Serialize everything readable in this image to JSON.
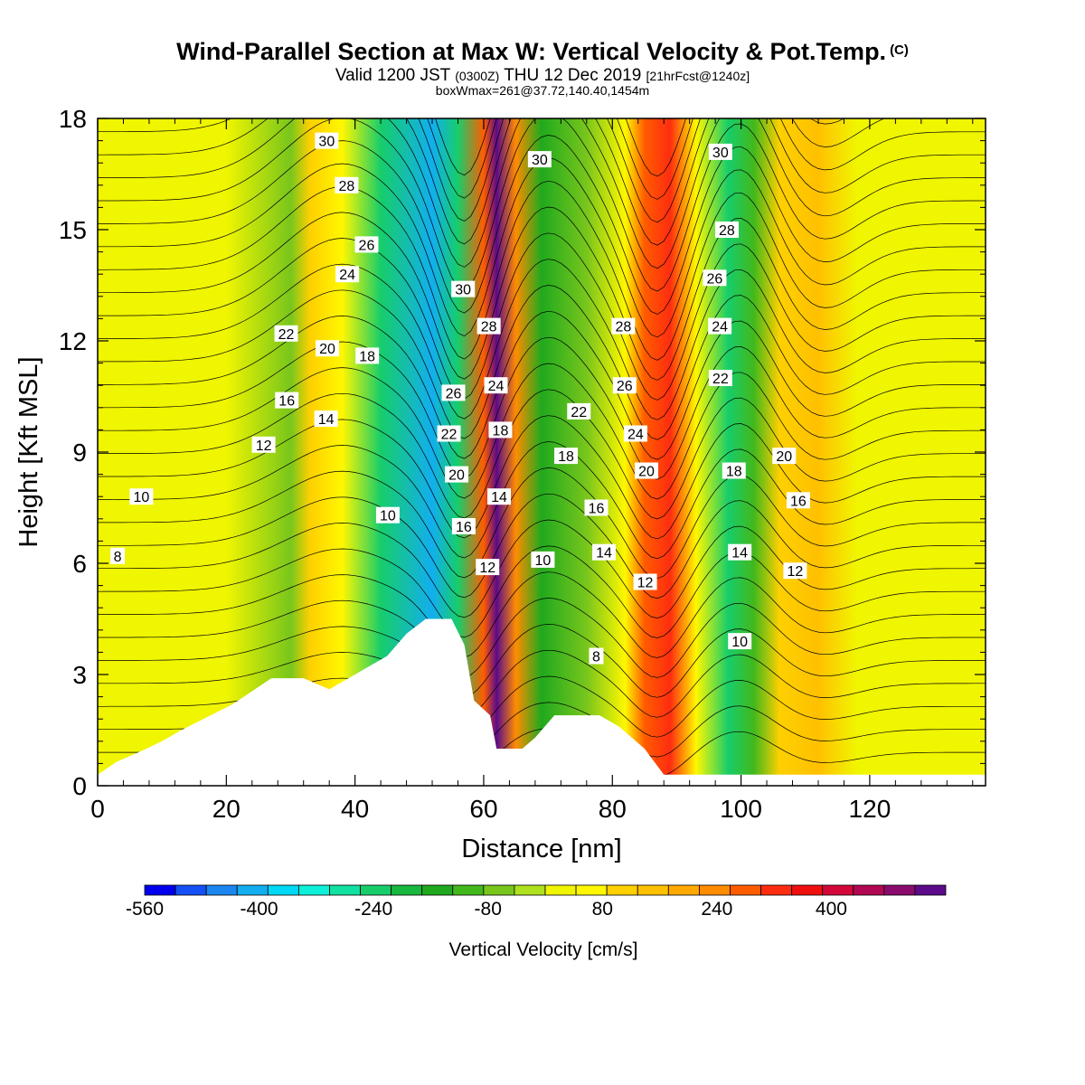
{
  "title": {
    "main": "Wind-Parallel Section at Max W: Vertical Velocity & Pot.Temp.",
    "copyright_mark": "(C)",
    "valid_prefix": "Valid 1200 JST",
    "utc": "(0300Z)",
    "valid_date": "THU 12 Dec 2019",
    "forecast": "[21hrFcst@1240z]",
    "box_info": "boxWmax=261@37.72,140.40,1454m"
  },
  "chart_data": {
    "type": "contour",
    "xlabel": "Distance [nm]",
    "ylabel": "Height [Kft MSL]",
    "xlim": [
      0,
      138
    ],
    "ylim": [
      0,
      18
    ],
    "x_ticks": [
      0,
      20,
      40,
      60,
      80,
      100,
      120
    ],
    "y_ticks": [
      0,
      3,
      6,
      9,
      12,
      15,
      18
    ],
    "colorbar": {
      "label": "Vertical Velocity [cm/s]",
      "tick_labels": [
        -560,
        -400,
        -240,
        -80,
        80,
        240,
        400
      ],
      "min": -560,
      "max": 560,
      "colors": [
        "#0000ee",
        "#1450f5",
        "#1b86f0",
        "#12aef0",
        "#00d8f5",
        "#0ef0d8",
        "#12e0a0",
        "#17cd6a",
        "#18b73e",
        "#20a91e",
        "#42b81c",
        "#78c61c",
        "#aee11e",
        "#f0f500",
        "#fff700",
        "#fed000",
        "#ffc000",
        "#ffa900",
        "#ff8c00",
        "#ff5c00",
        "#ff2d10",
        "#f00f0f",
        "#d4073a",
        "#b20752",
        "#8a0a6d",
        "#5c0a8a"
      ]
    },
    "wind_series": [
      {
        "x": 0,
        "w": 40
      },
      {
        "x": 20,
        "w": 40
      },
      {
        "x": 30,
        "w": -60
      },
      {
        "x": 33,
        "w": 100
      },
      {
        "x": 38,
        "w": 70
      },
      {
        "x": 44,
        "w": -250
      },
      {
        "x": 52,
        "w": -420
      },
      {
        "x": 56,
        "w": -220
      },
      {
        "x": 60,
        "w": 300
      },
      {
        "x": 62,
        "w": 520
      },
      {
        "x": 65,
        "w": 240
      },
      {
        "x": 69,
        "w": -130
      },
      {
        "x": 76,
        "w": -60
      },
      {
        "x": 82,
        "w": 60
      },
      {
        "x": 85,
        "w": 300
      },
      {
        "x": 89,
        "w": 330
      },
      {
        "x": 93,
        "w": 60
      },
      {
        "x": 98,
        "w": -220
      },
      {
        "x": 102,
        "w": -120
      },
      {
        "x": 106,
        "w": 90
      },
      {
        "x": 112,
        "w": 140
      },
      {
        "x": 118,
        "w": 30
      },
      {
        "x": 138,
        "w": 20
      }
    ],
    "terrain": [
      {
        "x": 0,
        "h": 0.3
      },
      {
        "x": 3,
        "h": 0.65
      },
      {
        "x": 7,
        "h": 0.95
      },
      {
        "x": 10,
        "h": 1.2
      },
      {
        "x": 13,
        "h": 1.5
      },
      {
        "x": 17,
        "h": 1.85
      },
      {
        "x": 21,
        "h": 2.2
      },
      {
        "x": 24,
        "h": 2.55
      },
      {
        "x": 27,
        "h": 2.9
      },
      {
        "x": 32,
        "h": 2.9
      },
      {
        "x": 36,
        "h": 2.6
      },
      {
        "x": 39,
        "h": 2.9
      },
      {
        "x": 42,
        "h": 3.2
      },
      {
        "x": 45,
        "h": 3.5
      },
      {
        "x": 48,
        "h": 4.1
      },
      {
        "x": 51,
        "h": 4.5
      },
      {
        "x": 55,
        "h": 4.5
      },
      {
        "x": 57,
        "h": 3.8
      },
      {
        "x": 58.5,
        "h": 2.3
      },
      {
        "x": 61,
        "h": 1.9
      },
      {
        "x": 62,
        "h": 1.0
      },
      {
        "x": 66,
        "h": 1.0
      },
      {
        "x": 68,
        "h": 1.3
      },
      {
        "x": 71,
        "h": 1.9
      },
      {
        "x": 74,
        "h": 1.9
      },
      {
        "x": 78,
        "h": 1.9
      },
      {
        "x": 81,
        "h": 1.6
      },
      {
        "x": 85,
        "h": 1.0
      },
      {
        "x": 88,
        "h": 0.3
      },
      {
        "x": 138,
        "h": 0.3
      }
    ],
    "theta_labels": [
      {
        "value": "30",
        "x": 35.6,
        "y": 17.4
      },
      {
        "value": "28",
        "x": 38.7,
        "y": 16.2
      },
      {
        "value": "26",
        "x": 41.8,
        "y": 14.6
      },
      {
        "value": "24",
        "x": 38.8,
        "y": 13.8
      },
      {
        "value": "22",
        "x": 29.3,
        "y": 12.2
      },
      {
        "value": "20",
        "x": 35.7,
        "y": 11.8
      },
      {
        "value": "18",
        "x": 41.9,
        "y": 11.6
      },
      {
        "value": "16",
        "x": 29.4,
        "y": 10.4
      },
      {
        "value": "14",
        "x": 35.5,
        "y": 9.9
      },
      {
        "value": "12",
        "x": 25.8,
        "y": 9.2
      },
      {
        "value": "10",
        "x": 6.8,
        "y": 7.8
      },
      {
        "value": "8",
        "x": 3.1,
        "y": 6.2
      },
      {
        "value": "10",
        "x": 45.1,
        "y": 7.3
      },
      {
        "value": "30",
        "x": 56.8,
        "y": 13.4
      },
      {
        "value": "28",
        "x": 60.8,
        "y": 12.4
      },
      {
        "value": "26",
        "x": 55.3,
        "y": 10.6
      },
      {
        "value": "24",
        "x": 61.9,
        "y": 10.8
      },
      {
        "value": "22",
        "x": 54.6,
        "y": 9.5
      },
      {
        "value": "18",
        "x": 62.6,
        "y": 9.6
      },
      {
        "value": "20",
        "x": 55.8,
        "y": 8.4
      },
      {
        "value": "14",
        "x": 62.4,
        "y": 7.8
      },
      {
        "value": "16",
        "x": 56.9,
        "y": 7.0
      },
      {
        "value": "12",
        "x": 60.6,
        "y": 5.9
      },
      {
        "value": "30",
        "x": 68.7,
        "y": 16.9
      },
      {
        "value": "28",
        "x": 81.7,
        "y": 12.4
      },
      {
        "value": "26",
        "x": 81.9,
        "y": 10.8
      },
      {
        "value": "22",
        "x": 74.8,
        "y": 10.1
      },
      {
        "value": "24",
        "x": 83.6,
        "y": 9.5
      },
      {
        "value": "18",
        "x": 72.8,
        "y": 8.9
      },
      {
        "value": "20",
        "x": 85.3,
        "y": 8.5
      },
      {
        "value": "16",
        "x": 77.5,
        "y": 7.5
      },
      {
        "value": "14",
        "x": 78.7,
        "y": 6.3
      },
      {
        "value": "10",
        "x": 69.2,
        "y": 6.1
      },
      {
        "value": "12",
        "x": 85.1,
        "y": 5.5
      },
      {
        "value": "8",
        "x": 77.5,
        "y": 3.5
      },
      {
        "value": "30",
        "x": 96.8,
        "y": 17.1
      },
      {
        "value": "28",
        "x": 97.8,
        "y": 15.0
      },
      {
        "value": "26",
        "x": 95.9,
        "y": 13.7
      },
      {
        "value": "24",
        "x": 96.7,
        "y": 12.4
      },
      {
        "value": "22",
        "x": 96.8,
        "y": 11.0
      },
      {
        "value": "18",
        "x": 98.9,
        "y": 8.5
      },
      {
        "value": "14",
        "x": 99.8,
        "y": 6.3
      },
      {
        "value": "10",
        "x": 99.8,
        "y": 3.9
      },
      {
        "value": "20",
        "x": 106.7,
        "y": 8.9
      },
      {
        "value": "16",
        "x": 108.9,
        "y": 7.7
      },
      {
        "value": "12",
        "x": 108.4,
        "y": 5.8
      }
    ]
  }
}
